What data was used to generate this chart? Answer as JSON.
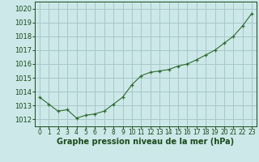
{
  "x": [
    0,
    1,
    2,
    3,
    4,
    5,
    6,
    7,
    8,
    9,
    10,
    11,
    12,
    13,
    14,
    15,
    16,
    17,
    18,
    19,
    20,
    21,
    22,
    23
  ],
  "y": [
    1013.6,
    1013.1,
    1012.6,
    1012.7,
    1012.1,
    1012.3,
    1012.4,
    1012.6,
    1013.1,
    1013.6,
    1014.5,
    1015.15,
    1015.4,
    1015.5,
    1015.6,
    1015.85,
    1016.0,
    1016.3,
    1016.65,
    1017.0,
    1017.5,
    1018.0,
    1018.75,
    1019.65
  ],
  "line_color": "#2d6a2d",
  "marker": "+",
  "bg_color": "#cce8e8",
  "grid_color": "#a8c8c8",
  "xlabel": "Graphe pression niveau de la mer (hPa)",
  "xlabel_color": "#1a4a1a",
  "ylim": [
    1011.5,
    1020.5
  ],
  "yticks": [
    1012,
    1013,
    1014,
    1015,
    1016,
    1017,
    1018,
    1019,
    1020
  ],
  "xticks": [
    0,
    1,
    2,
    3,
    4,
    5,
    6,
    7,
    8,
    9,
    10,
    11,
    12,
    13,
    14,
    15,
    16,
    17,
    18,
    19,
    20,
    21,
    22,
    23
  ],
  "tick_color": "#1a4a1a",
  "ytick_fontsize": 6,
  "xtick_fontsize": 5.5,
  "xlabel_fontsize": 7
}
